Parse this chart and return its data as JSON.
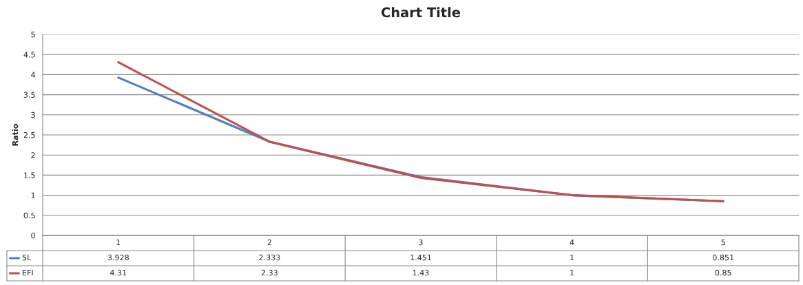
{
  "chart_data": {
    "type": "line",
    "title": "Chart Title",
    "ylabel": "Ratio",
    "categories": [
      "1",
      "2",
      "3",
      "4",
      "5"
    ],
    "series": [
      {
        "name": "5L",
        "color": "#4f81bd",
        "values": [
          3.928,
          2.333,
          1.451,
          1,
          0.851
        ]
      },
      {
        "name": "EFI",
        "color": "#c0504d",
        "values": [
          4.31,
          2.33,
          1.43,
          1,
          0.85
        ]
      }
    ],
    "ylim": [
      0,
      5
    ],
    "yticks": [
      0,
      {
        "value": 0.5,
        "label": "0.5"
      },
      1,
      {
        "value": 1.5,
        "label": "1.5"
      },
      2,
      {
        "value": 2.5,
        "label": "2.5"
      },
      3,
      {
        "value": 3.5,
        "label": "3.5"
      },
      4,
      {
        "value": 4.5,
        "label": "4.5"
      },
      5
    ],
    "grid": "y",
    "legend": "bottom",
    "data_labels": true,
    "marker": "none",
    "line_style": "solid"
  }
}
